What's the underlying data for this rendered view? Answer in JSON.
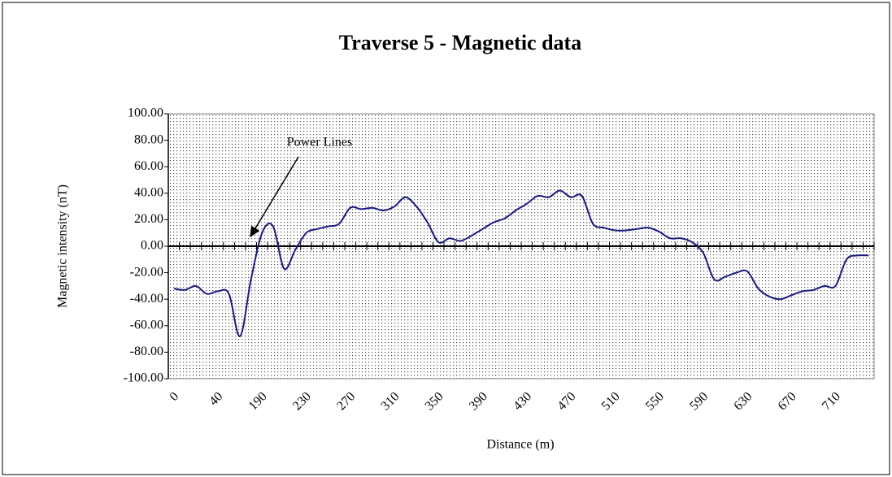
{
  "chart_data": {
    "type": "line",
    "title": "Traverse 5 - Magnetic data",
    "xlabel": "Distance (m)",
    "ylabel": "Magnetic intensity (nT)",
    "annotation": "Power Lines",
    "categories": [
      "0",
      null,
      null,
      null,
      "40",
      null,
      null,
      null,
      "190",
      null,
      null,
      null,
      "230",
      null,
      null,
      null,
      "270",
      null,
      null,
      null,
      "310",
      null,
      null,
      null,
      "350",
      null,
      null,
      null,
      "390",
      null,
      null,
      null,
      "430",
      null,
      null,
      null,
      "470",
      null,
      null,
      null,
      "510",
      null,
      null,
      null,
      "550",
      null,
      null,
      null,
      "590",
      null,
      null,
      null,
      "630",
      null,
      null,
      null,
      "670",
      null,
      null,
      null,
      "710",
      null,
      null,
      null
    ],
    "series": [
      {
        "name": "Magnetic intensity",
        "color": "#1a1a80",
        "values": [
          -32,
          -33,
          -30,
          -36,
          -34,
          -36,
          -68,
          -25,
          10,
          15,
          -17,
          -3,
          10,
          13,
          15,
          17,
          29,
          28,
          29,
          27,
          30,
          37,
          30,
          18,
          3,
          6,
          4,
          8,
          13,
          18,
          21,
          27,
          32,
          38,
          37,
          42,
          37,
          38,
          17,
          14,
          12,
          12,
          13,
          14,
          11,
          6,
          6,
          3,
          -5,
          -25,
          -23,
          -20,
          -19,
          -32,
          -38,
          -40,
          -37,
          -34,
          -33,
          -30,
          -30,
          -10,
          -7,
          -7
        ]
      }
    ],
    "ylim": [
      -100,
      100
    ],
    "yticks": [
      {
        "value": -100,
        "label": "-100.00"
      },
      {
        "value": -80,
        "label": "-80.00"
      },
      {
        "value": -60,
        "label": "-60.00"
      },
      {
        "value": -40,
        "label": "-40.00"
      },
      {
        "value": -20,
        "label": "-20.00"
      },
      {
        "value": 0,
        "label": "0.00"
      },
      {
        "value": 20,
        "label": "20.00"
      },
      {
        "value": 40,
        "label": "40.00"
      },
      {
        "value": 60,
        "label": "60.00"
      },
      {
        "value": 80,
        "label": "80.00"
      },
      {
        "value": 100,
        "label": "100.00"
      }
    ]
  }
}
